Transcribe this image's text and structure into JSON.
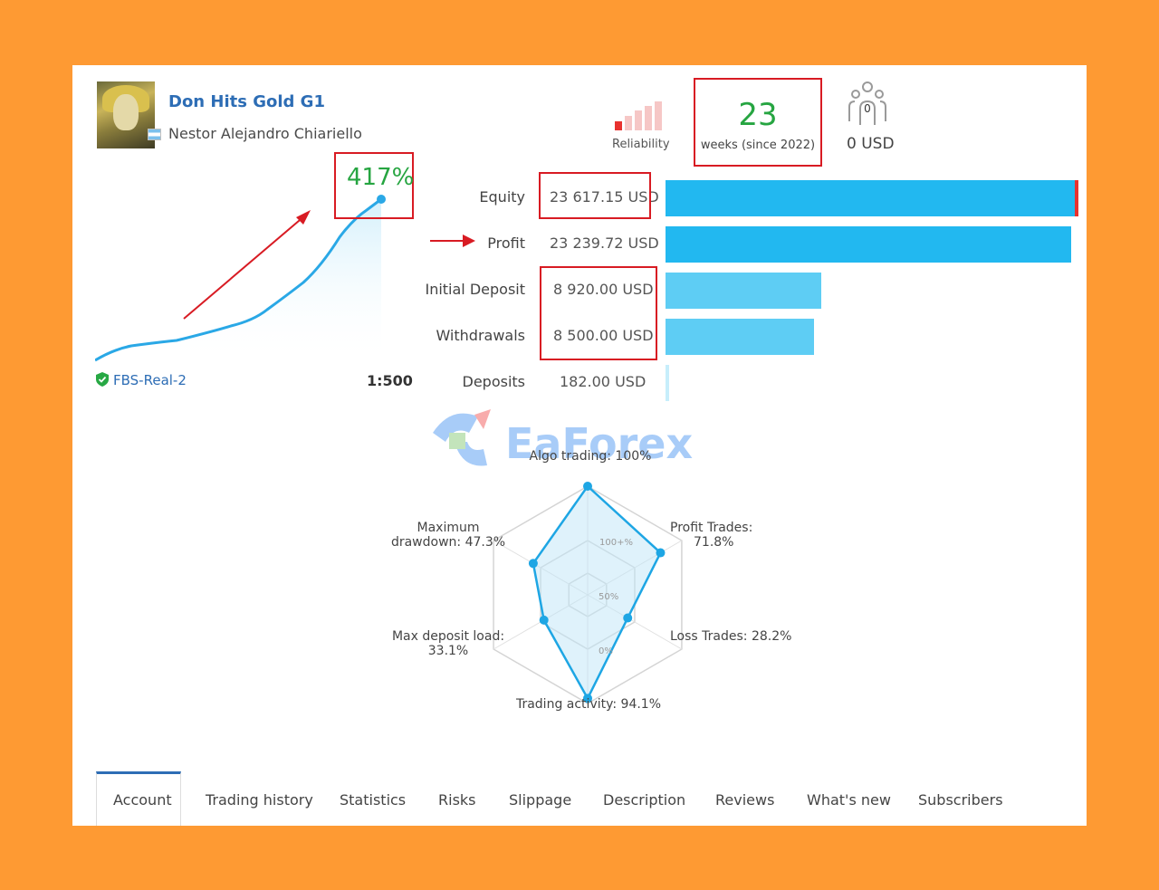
{
  "signal": {
    "name": "Don Hits Gold G1",
    "author": "Nestor Alejandro Chiariello"
  },
  "header_stats": {
    "reliability_label": "Reliability",
    "weeks_value": "23",
    "weeks_label": "weeks (since 2022)",
    "subscribers_icon_count": "0",
    "subscribers_funds": "0 USD"
  },
  "growth": {
    "value": "417%"
  },
  "metrics": [
    {
      "label": "Equity",
      "value": "23 617.15 USD",
      "bar_fraction": 1.0
    },
    {
      "label": "Profit",
      "value": "23 239.72 USD",
      "bar_fraction": 0.984
    },
    {
      "label": "Initial Deposit",
      "value": "8 920.00 USD",
      "bar_fraction": 0.378
    },
    {
      "label": "Withdrawals",
      "value": "8 500.00 USD",
      "bar_fraction": 0.36
    },
    {
      "label": "Deposits",
      "value": "182.00 USD",
      "bar_fraction": 0.008
    }
  ],
  "account": {
    "server": "FBS-Real-2",
    "leverage": "1:500"
  },
  "watermark": {
    "text": "EaForex"
  },
  "radar": {
    "ring_labels": [
      "100+%",
      "50%",
      "0%"
    ],
    "axes": [
      {
        "name": "Algo trading: 100%",
        "value": 1.0
      },
      {
        "name": "Profit Trades: 71.8%",
        "value": 0.718
      },
      {
        "name": "Loss Trades: 28.2%",
        "value": 0.282
      },
      {
        "name": "Trading activity: 94.1%",
        "value": 0.941
      },
      {
        "name": "Max deposit load: 33.1%",
        "value": 0.331
      },
      {
        "name": "Maximum drawdown: 47.3%",
        "value": 0.473
      }
    ],
    "labels": {
      "algo": "Algo trading: 100%",
      "profit_line1": "Profit Trades:",
      "profit_line2": "71.8%",
      "loss": "Loss Trades: 28.2%",
      "activity": "Trading activity: 94.1%",
      "deposit_line1": "Max deposit load:",
      "deposit_line2": "33.1%",
      "drawdown_line1": "Maximum",
      "drawdown_line2": "drawdown: 47.3%"
    }
  },
  "tabs": [
    {
      "label": "Account",
      "active": true
    },
    {
      "label": "Trading history"
    },
    {
      "label": "Statistics"
    },
    {
      "label": "Risks"
    },
    {
      "label": "Slippage"
    },
    {
      "label": "Description"
    },
    {
      "label": "Reviews"
    },
    {
      "label": "What's new"
    },
    {
      "label": "Subscribers"
    }
  ],
  "colors": {
    "background": "#fe9a33",
    "accent_blue": "#22b8f0",
    "link_blue": "#2d6db5",
    "positive_green": "#26a541",
    "highlight_red": "#d81b23"
  },
  "icons": {
    "avatar": "author-avatar",
    "flag": "argentina-flag-icon",
    "reliability": "reliability-bars-icon",
    "subscribers": "subscribers-icon",
    "server": "verified-shield-icon"
  }
}
